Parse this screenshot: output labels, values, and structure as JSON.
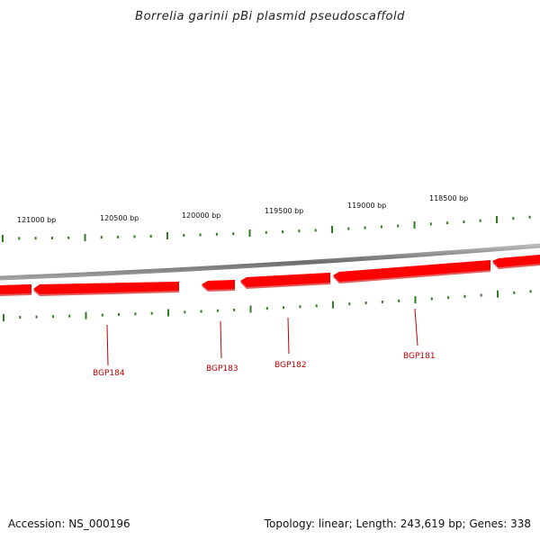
{
  "title": "Borrelia garinii pBi plasmid pseudoscaffold",
  "footer": {
    "accession": "Accession: NS_000196",
    "summary": "Topology: linear; Length: 243,619 bp; Genes: 338"
  },
  "scale": {
    "unit": "bp",
    "labels": [
      "121000 bp",
      "120500 bp",
      "120000 bp",
      "119500 bp",
      "119000 bp",
      "118500 bp"
    ]
  },
  "genes": [
    {
      "label": "BGP184",
      "strand": "reverse"
    },
    {
      "label": "BGP183",
      "strand": "reverse"
    },
    {
      "label": "BGP182",
      "strand": "reverse"
    },
    {
      "label": "BGP181",
      "strand": "reverse"
    }
  ],
  "colors": {
    "gene_fill": "#ff0000",
    "gene_edge": "#e06060",
    "backbone": "#7a7a7a",
    "tick": "#2e7d1e",
    "gene_label": "#c00000"
  }
}
